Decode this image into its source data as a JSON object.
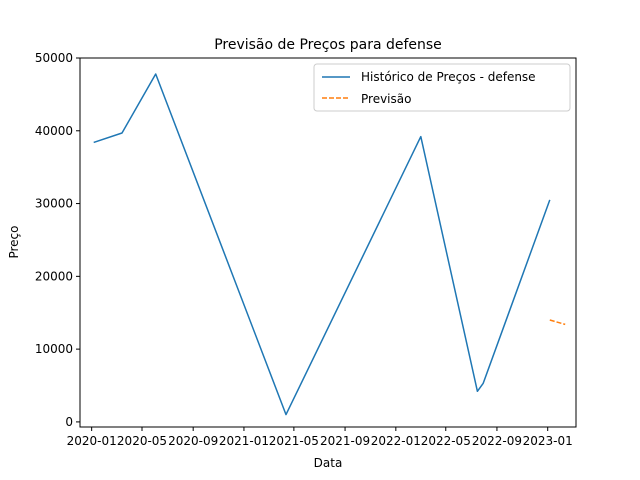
{
  "chart_data": {
    "type": "line",
    "title": "Previsão de Preços para defense",
    "xlabel": "Data",
    "ylabel": "Preço",
    "xlim": [
      "2019-12-04",
      "2023-03-10"
    ],
    "ylim": [
      -700,
      50000
    ],
    "x_ticks": [
      "2020-01-01",
      "2020-05-01",
      "2020-09-01",
      "2021-01-01",
      "2021-05-01",
      "2021-09-01",
      "2022-01-01",
      "2022-05-01",
      "2022-09-01",
      "2023-01-01"
    ],
    "x_tick_labels": [
      "2020-01",
      "2020-05",
      "2020-09",
      "2021-01",
      "2021-05",
      "2021-09",
      "2022-01",
      "2022-05",
      "2022-09",
      "2023-01"
    ],
    "y_ticks": [
      0,
      10000,
      20000,
      30000,
      40000,
      50000
    ],
    "y_tick_labels": [
      "0",
      "10000",
      "20000",
      "30000",
      "40000",
      "50000"
    ],
    "grid": false,
    "legend": "top-right",
    "series": [
      {
        "name": "Histórico de Preços - defense",
        "color": "#1f77b4",
        "style": "solid",
        "points": [
          {
            "x": "2020-01-06",
            "y": 38400
          },
          {
            "x": "2020-03-14",
            "y": 39700
          },
          {
            "x": "2020-06-03",
            "y": 47800
          },
          {
            "x": "2021-04-12",
            "y": 1000
          },
          {
            "x": "2022-03-02",
            "y": 39200
          },
          {
            "x": "2022-07-16",
            "y": 4200
          },
          {
            "x": "2022-07-30",
            "y": 5300
          },
          {
            "x": "2023-01-06",
            "y": 30500
          }
        ]
      },
      {
        "name": "Previsão",
        "color": "#ff7f0e",
        "style": "dashed",
        "points": [
          {
            "x": "2023-01-06",
            "y": 14000
          },
          {
            "x": "2023-02-12",
            "y": 13400
          }
        ]
      }
    ]
  }
}
